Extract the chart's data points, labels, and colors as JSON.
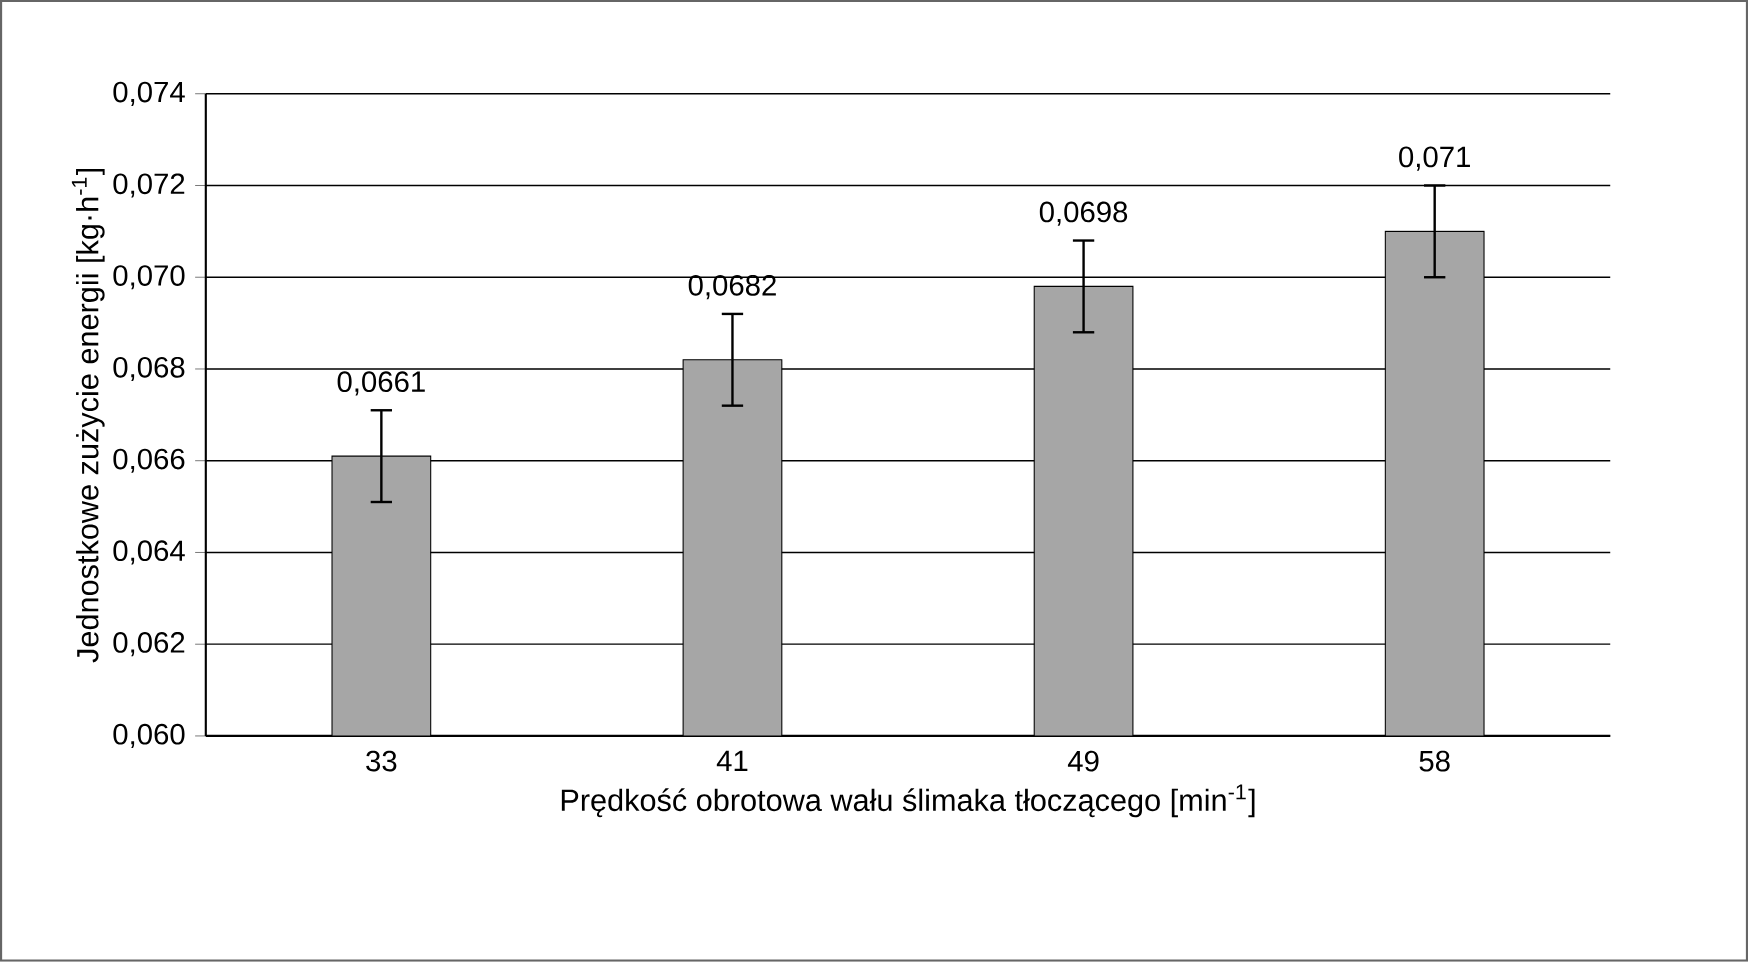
{
  "chart_data": {
    "type": "bar",
    "xlabel": "Prędkość obrotowa wału ślimaka tłoczącego [min$^{-1}$]",
    "ylabel": "Jednostkowe zużycie energii [kg·h$^{-1}$]",
    "categories": [
      "33",
      "41",
      "49",
      "58"
    ],
    "values": [
      0.0661,
      0.0682,
      0.0698,
      0.071
    ],
    "value_labels": [
      "0,0661",
      "0,0682",
      "0,0698",
      "0,071"
    ],
    "errors": [
      0.001,
      0.001,
      0.001,
      0.001
    ],
    "color": "#a6a6a6",
    "ylim": [
      0.06,
      0.074
    ],
    "yticks": [
      {
        "value": 0.06,
        "label": "0,060"
      },
      {
        "value": 0.062,
        "label": "0,062"
      },
      {
        "value": 0.064,
        "label": "0,064"
      },
      {
        "value": 0.066,
        "label": "0,066"
      },
      {
        "value": 0.068,
        "label": "0,068"
      },
      {
        "value": 0.07,
        "label": "0,070"
      },
      {
        "value": 0.072,
        "label": "0,072"
      },
      {
        "value": 0.074,
        "label": "0,074"
      }
    ],
    "grid": "y"
  }
}
